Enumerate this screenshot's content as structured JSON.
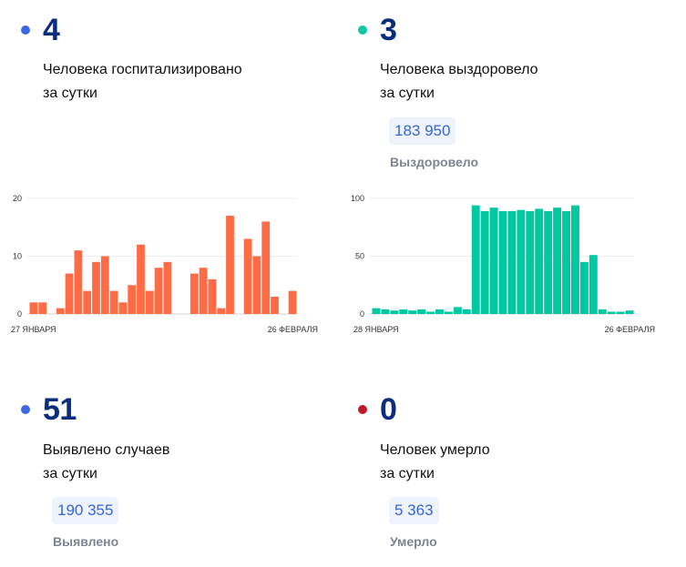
{
  "colors": {
    "number": "#0a2d80",
    "dot_hospitalized": "#3b69e6",
    "dot_recovered": "#10c7a3",
    "dot_cases": "#3b69e6",
    "dot_deaths": "#c4182a",
    "bar_hospitalized": "#ff6b45",
    "bar_recovered": "#00c8a0"
  },
  "hospitalized": {
    "value": "4",
    "label_line1": "Человека госпитализировано",
    "label_line2": "за сутки"
  },
  "recovered": {
    "value": "3",
    "label_line1": "Человека выздоровело",
    "label_line2": "за сутки",
    "total": "183 950",
    "total_label": "Выздоровело"
  },
  "cases": {
    "value": "51",
    "label_line1": "Выявлено случаев",
    "label_line2": "за сутки",
    "total": "190 355",
    "total_label": "Выявлено"
  },
  "deaths": {
    "value": "0",
    "label_line1": "Человек умерло",
    "label_line2": "за сутки",
    "total": "5 363",
    "total_label": "Умерло"
  },
  "chart_data": [
    {
      "type": "bar",
      "title": "Госпитализировано за сутки",
      "x_start_label": "27 ЯНВАРЯ",
      "x_end_label": "26 ФЕВРАЛЯ",
      "ylim": [
        0,
        20
      ],
      "yticks": [
        0,
        10,
        20
      ],
      "values": [
        2,
        2,
        0,
        1,
        7,
        11,
        4,
        9,
        10,
        4,
        2,
        5,
        12,
        4,
        8,
        9,
        0,
        0,
        7,
        8,
        6,
        1,
        17,
        0,
        13,
        10,
        16,
        3,
        0,
        4
      ]
    },
    {
      "type": "bar",
      "title": "Выздоровело за сутки",
      "x_start_label": "28 ЯНВАРЯ",
      "x_end_label": "26 ФЕВРАЛЯ",
      "ylim": [
        0,
        100
      ],
      "yticks": [
        0,
        50,
        100
      ],
      "values": [
        5,
        4,
        3,
        4,
        3,
        4,
        2,
        4,
        2,
        6,
        4,
        94,
        89,
        92,
        89,
        89,
        90,
        89,
        91,
        89,
        92,
        89,
        94,
        45,
        51,
        4,
        2,
        2,
        3
      ]
    }
  ]
}
